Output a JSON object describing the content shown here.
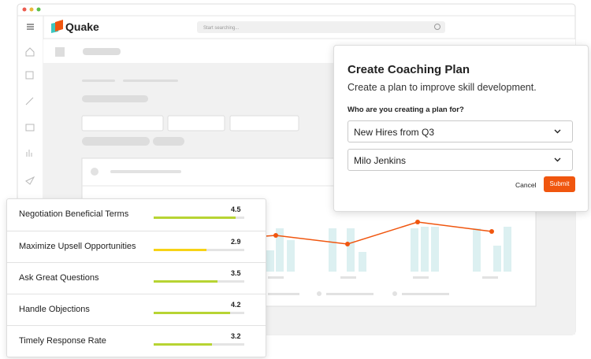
{
  "header": {
    "logo": "Quake",
    "search_placeholder": "Start searching..."
  },
  "dialog": {
    "title": "Create Coaching Plan",
    "subtitle": "Create a plan to improve skill development.",
    "question": "Who are you creating a plan for?",
    "dropdowns": [
      "New Hires from Q3",
      "Milo Jenkins"
    ],
    "cancel": "Cancel",
    "submit": "Submit"
  },
  "skills": {
    "scale": [
      0,
      5
    ],
    "items": [
      {
        "name": "Negotiation Beneficial Terms",
        "score": 4.5,
        "color": "#b7d433"
      },
      {
        "name": "Maximize Upsell Opportunities",
        "score": 2.9,
        "color": "#f7d316"
      },
      {
        "name": "Ask Great Questions",
        "score": 3.5,
        "color": "#b7d433"
      },
      {
        "name": "Handle Objections",
        "score": 4.2,
        "color": "#b7d433"
      },
      {
        "name": "Timely Response Rate",
        "score": 3.2,
        "color": "#b7d433"
      }
    ]
  }
}
